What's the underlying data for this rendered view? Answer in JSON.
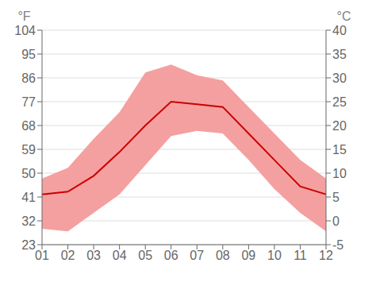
{
  "chart_data": {
    "type": "line",
    "categories": [
      "01",
      "02",
      "03",
      "04",
      "05",
      "06",
      "07",
      "08",
      "09",
      "10",
      "11",
      "12"
    ],
    "series": [
      {
        "type": "band",
        "color": "#f4a0a0",
        "low": [
          29,
          28,
          35,
          42,
          53,
          64,
          66,
          65,
          55,
          44,
          35,
          28
        ],
        "high": [
          48,
          52,
          63,
          73,
          88,
          91,
          87,
          85,
          75,
          65,
          55,
          48
        ]
      },
      {
        "type": "line",
        "color": "#cc0000",
        "values": [
          42,
          43,
          49,
          58,
          68,
          77,
          76,
          75,
          65,
          55,
          45,
          42
        ]
      }
    ],
    "ylim": [
      23,
      104
    ],
    "yticks": [
      23,
      32,
      41,
      50,
      59,
      68,
      77,
      86,
      95,
      104
    ],
    "y2lim": [
      -5,
      40
    ],
    "y2ticks": [
      -5,
      0,
      5,
      10,
      15,
      20,
      25,
      30,
      35,
      40
    ],
    "y_label": "°F",
    "y2_label": "°C",
    "grid": true
  }
}
